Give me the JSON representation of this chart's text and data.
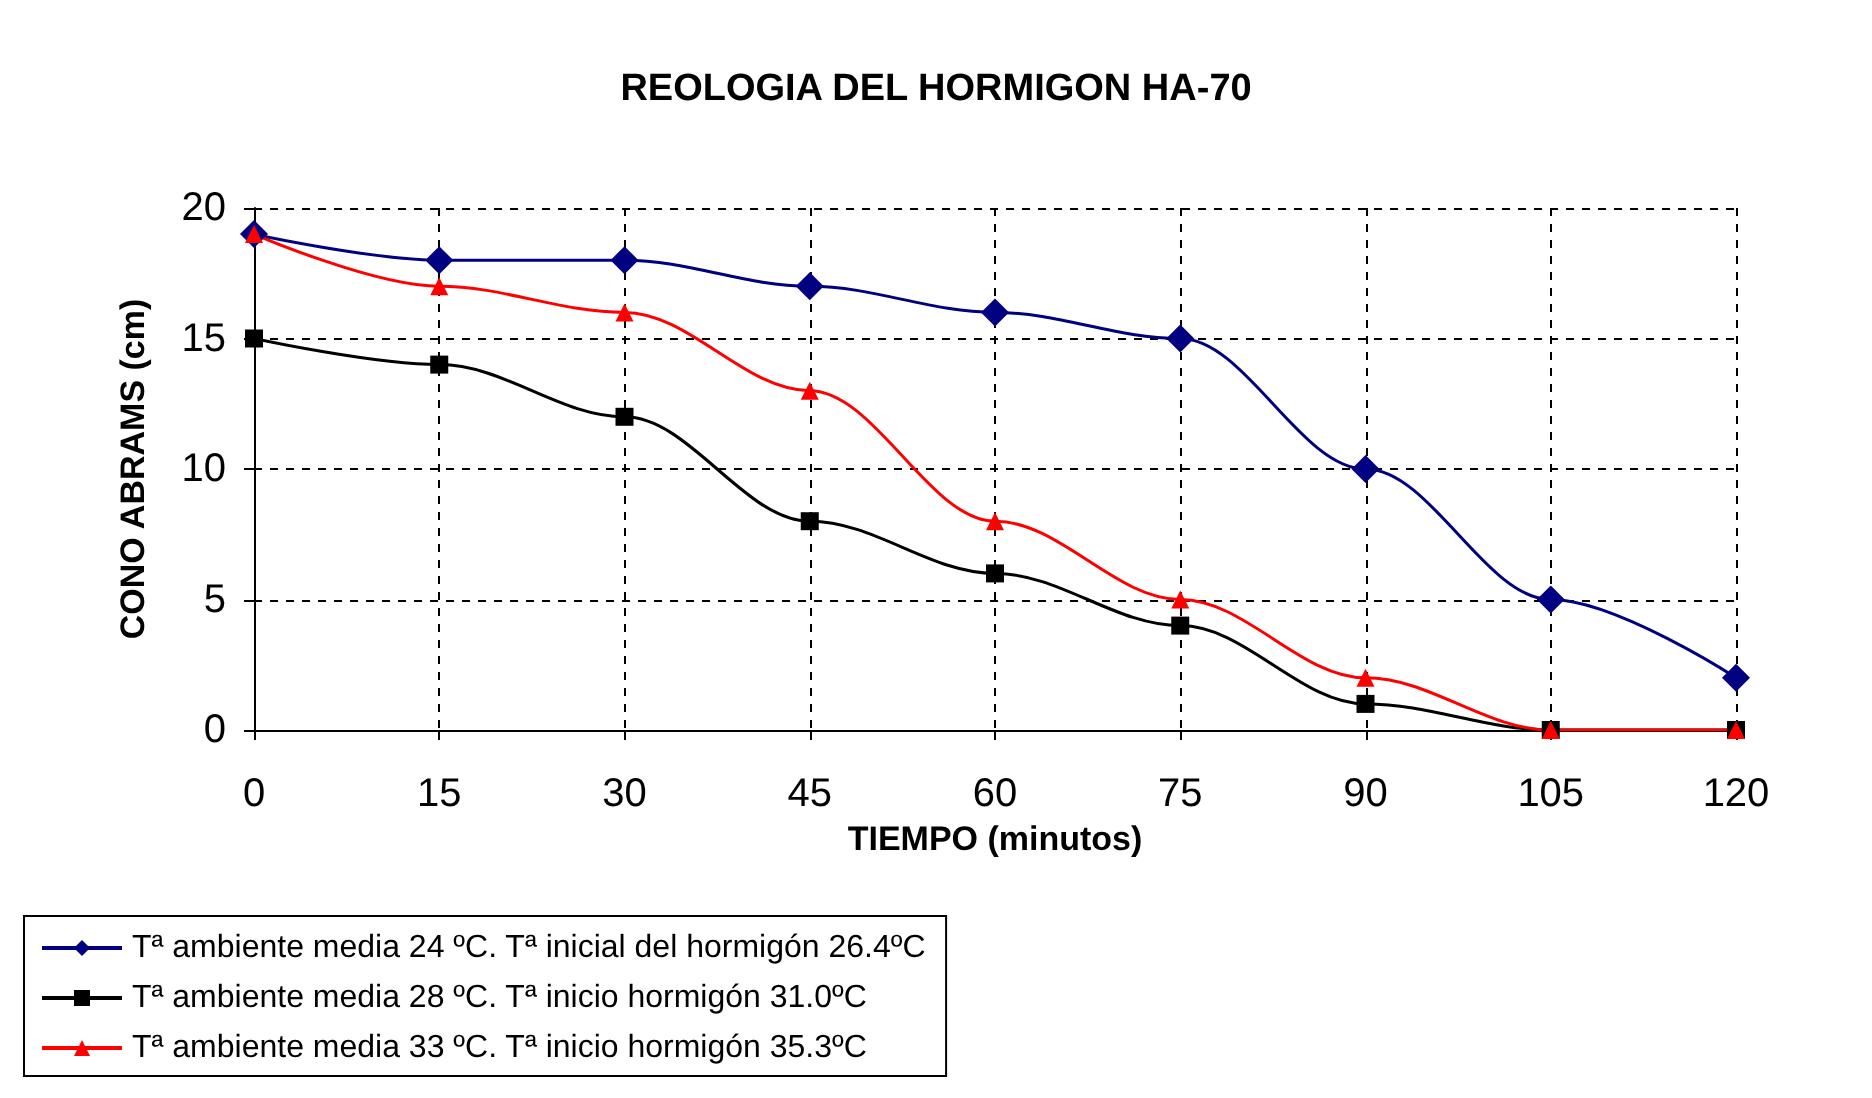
{
  "chart_data": {
    "type": "line",
    "title": "REOLOGIA DEL HORMIGON HA-70",
    "xlabel": "TIEMPO (minutos)",
    "ylabel": "CONO ABRAMS (cm)",
    "x": [
      0,
      15,
      30,
      45,
      60,
      75,
      90,
      105,
      120
    ],
    "series": [
      {
        "name": "Tª ambiente media 24 ºC. Tª inicial del hormigón 26.4ºC",
        "color": "#000080",
        "marker": "diamond",
        "values": [
          19,
          18,
          18,
          17,
          16,
          15,
          10,
          5,
          2
        ]
      },
      {
        "name": "Tª ambiente media 28 ºC. Tª inicio hormigón 31.0ºC",
        "color": "#000000",
        "marker": "square",
        "values": [
          15,
          14,
          12,
          8,
          6,
          4,
          1,
          0,
          0
        ]
      },
      {
        "name": "Tª ambiente media 33 ºC. Tª inicio hormigón 35.3ºC",
        "color": "#ff0000",
        "marker": "triangle",
        "values": [
          19,
          17,
          16,
          13,
          8,
          5,
          2,
          0,
          0
        ]
      }
    ],
    "xlim": [
      0,
      120
    ],
    "xticks": [
      0,
      15,
      30,
      45,
      60,
      75,
      90,
      105,
      120
    ],
    "ylim": [
      0,
      20
    ],
    "yticks": [
      0,
      5,
      10,
      15,
      20
    ],
    "grid": true,
    "legend": "bottom left",
    "line_style": "solid"
  }
}
